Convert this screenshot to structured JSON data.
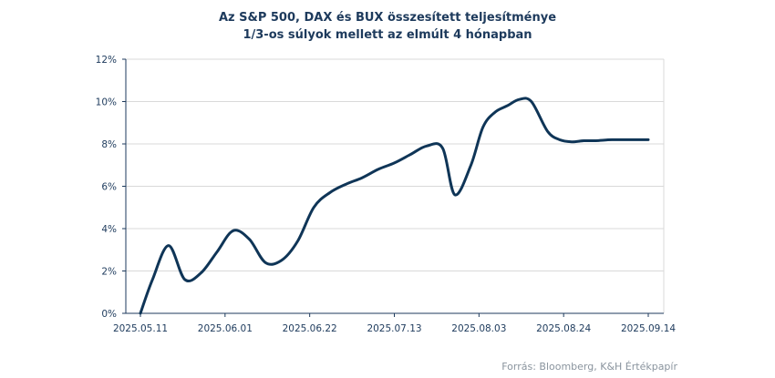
{
  "chart_data": {
    "type": "line",
    "title": "Az S&P 500, DAX és BUX összesített teljesítménye",
    "subtitle": "1/3-os súlyok mellett az elmúlt 4 hónapban",
    "x_tick_labels": [
      "2025.05.11",
      "2025.06.01",
      "2025.06.22",
      "2025.07.13",
      "2025.08.03",
      "2025.08.24",
      "2025.09.14"
    ],
    "y_tick_labels": [
      "0%",
      "2%",
      "4%",
      "6%",
      "8%",
      "10%",
      "12%"
    ],
    "ylim": [
      0,
      12
    ],
    "y_unit": "%",
    "grid": true,
    "line_color": "#0f3557",
    "series": [
      {
        "x": [
          "2025.05.11",
          "2025.05.14",
          "2025.05.18",
          "2025.05.22",
          "2025.05.26",
          "2025.05.30",
          "2025.06.03",
          "2025.06.07",
          "2025.06.11",
          "2025.06.15",
          "2025.06.19",
          "2025.06.23",
          "2025.06.27",
          "2025.07.01",
          "2025.07.05",
          "2025.07.09",
          "2025.07.13",
          "2025.07.17",
          "2025.07.21",
          "2025.07.25",
          "2025.07.28",
          "2025.08.01",
          "2025.08.04",
          "2025.08.07",
          "2025.08.10",
          "2025.08.13",
          "2025.08.16",
          "2025.08.20",
          "2025.08.23",
          "2025.08.26",
          "2025.08.29",
          "2025.09.01",
          "2025.09.05",
          "2025.09.09",
          "2025.09.14"
        ],
        "values": [
          0.0,
          1.6,
          3.2,
          1.6,
          1.9,
          2.9,
          3.9,
          3.5,
          2.4,
          2.5,
          3.4,
          5.0,
          5.7,
          6.1,
          6.4,
          6.8,
          7.1,
          7.5,
          7.9,
          7.8,
          5.6,
          7.0,
          8.8,
          9.5,
          9.8,
          10.1,
          10.0,
          8.6,
          8.2,
          8.1,
          8.15,
          8.15,
          8.2,
          8.2,
          8.2
        ]
      }
    ]
  },
  "source": "Forrás: Bloomberg, K&H Értékpapír"
}
